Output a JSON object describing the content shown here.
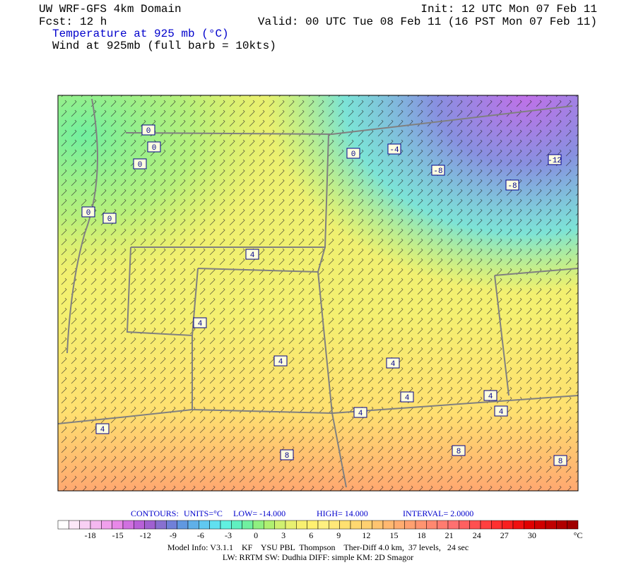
{
  "header": {
    "title": "UW WRF-GFS 4km Domain",
    "init": "Init: 12 UTC Mon 07 Feb 11",
    "fcst_label": "Fcst:",
    "fcst_value": "12 h",
    "valid": "Valid: 00 UTC Tue 08 Feb 11 (16 PST Mon 07 Feb 11)",
    "field": "Temperature at 925 mb (°C)",
    "wind": "Wind at 925mb (full barb = 10kts)"
  },
  "contour_labels": [
    0,
    0,
    0,
    0,
    0,
    0,
    -4,
    -8,
    -8,
    -12,
    4,
    4,
    4,
    4,
    4,
    4,
    4,
    4,
    4,
    8,
    8,
    8
  ],
  "contours": [
    "CONTOURS:",
    "UNITS=°C",
    "LOW= -14.000",
    "HIGH= 14.000",
    "INTERVAL= 2.0000"
  ],
  "colorbar": {
    "range": [
      -21.5,
      35
    ],
    "ticks": [
      -18,
      -15,
      -12,
      -9,
      -6,
      -3,
      0,
      3,
      6,
      9,
      12,
      15,
      18,
      21,
      24,
      27,
      30
    ],
    "unit": "°C",
    "colors": [
      "#ffffff",
      "#fce8f8",
      "#f8d0f4",
      "#f4b8f0",
      "#f0a0ec",
      "#e888e8",
      "#d070e0",
      "#b860d8",
      "#a060d0",
      "#8870d0",
      "#7080d8",
      "#6098e0",
      "#60b0e8",
      "#60c8f0",
      "#60e0f0",
      "#60f0e0",
      "#60f0c0",
      "#70f0a0",
      "#90f080",
      "#b0f070",
      "#d0f070",
      "#e8f070",
      "#f8f070",
      "#fff070",
      "#fff080",
      "#ffe878",
      "#ffe070",
      "#ffd870",
      "#ffd070",
      "#ffc470",
      "#ffb870",
      "#ffac70",
      "#ffa070",
      "#ff9470",
      "#ff8870",
      "#ff7c70",
      "#ff7070",
      "#ff6060",
      "#ff5050",
      "#ff4040",
      "#ff3030",
      "#f82020",
      "#f01010",
      "#e00000",
      "#d00000",
      "#c00000",
      "#b00000",
      "#a00000"
    ]
  },
  "footer": {
    "line1": "Model Info: V3.1.1    KF    YSU PBL  Thompson    Ther-Diff 4.0 km,  37 levels,   24 sec",
    "line2": "LW: RRTM SW: Dudhia  DIFF: simple KM: 2D Smagor"
  }
}
